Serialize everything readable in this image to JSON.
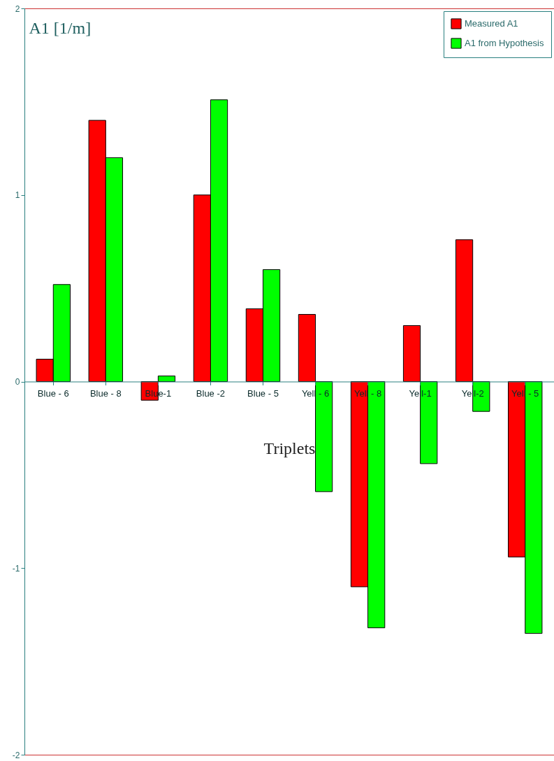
{
  "chart_data": {
    "type": "bar",
    "xlabel": "Triplets",
    "ylabel": "A1 [1/m]",
    "categories": [
      "Blue - 6",
      "Blue - 8",
      "Blue-1",
      "Blue -2",
      "Blue - 5",
      "Yell - 6",
      "Yell - 8",
      "Yell-1",
      "Yell-2",
      "Yell - 5"
    ],
    "series": [
      {
        "name": "Measured A1",
        "color": "#ff0000",
        "values": [
          0.12,
          1.4,
          -0.1,
          1.0,
          0.39,
          0.36,
          -1.1,
          0.3,
          0.76,
          -0.94
        ]
      },
      {
        "name": "A1 from Hypothesis",
        "color": "#00ff00",
        "values": [
          0.52,
          1.2,
          0.03,
          1.51,
          0.6,
          -0.59,
          -1.32,
          -0.44,
          -0.16,
          -1.35
        ]
      }
    ],
    "ylim": [
      -2,
      2
    ],
    "yticks": [
      -2,
      -1,
      0,
      1,
      2
    ],
    "grid": false,
    "legend": "top right"
  }
}
